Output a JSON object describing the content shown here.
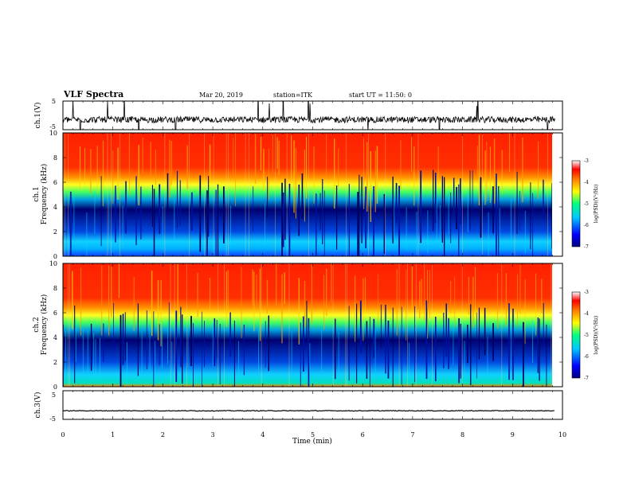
{
  "header": {
    "title": "VLF Spectra",
    "date": "Mar 20, 2019",
    "station": "station=ITK",
    "start": "start UT =  11:50: 0"
  },
  "chart_data": [
    {
      "type": "line",
      "panel": "ch1-waveform",
      "ylabel": "ch.1(V)",
      "ylim": [
        -5,
        5
      ],
      "yticks": [
        "5",
        "-5"
      ],
      "x_range_min": [
        0,
        9.85
      ],
      "baseline_v": -1.5,
      "color": "#000000"
    },
    {
      "type": "heatmap",
      "panel": "ch1-spectrogram",
      "ylabel_top": "ch.1",
      "ylabel": "Frequency (kHz)",
      "ylim": [
        0,
        10
      ],
      "yticks": [
        "0",
        "2",
        "4",
        "6",
        "8",
        "10"
      ],
      "colorbar": {
        "label": "log(PSD)(V²/Hz)",
        "ticks": [
          "-3",
          "-4",
          "-5",
          "-6",
          "-7"
        ],
        "range": [
          -7,
          -3
        ],
        "colormap": [
          "#000080",
          "#0000ff",
          "#00c8ff",
          "#00ff80",
          "#ffff00",
          "#ff8000",
          "#ff0000",
          "#ffffff"
        ]
      },
      "bands_khz": [
        {
          "from": 0,
          "to": 1.2,
          "log_psd": -5.6
        },
        {
          "from": 1.2,
          "to": 4.5,
          "log_psd": -6.5
        },
        {
          "from": 4.5,
          "to": 6.5,
          "log_psd": -5.0
        },
        {
          "from": 6.5,
          "to": 10,
          "log_psd": -3.6
        }
      ]
    },
    {
      "type": "heatmap",
      "panel": "ch2-spectrogram",
      "ylabel_top": "ch.2",
      "ylabel": "Frequency (kHz)",
      "ylim": [
        0,
        10
      ],
      "yticks": [
        "0",
        "2",
        "4",
        "6",
        "8",
        "10"
      ],
      "colorbar": {
        "label": "log(PSD)(V²/Hz)",
        "ticks": [
          "-3",
          "-4",
          "-5",
          "-6",
          "-7"
        ],
        "range": [
          -7,
          -3
        ]
      },
      "bands_khz": [
        {
          "from": 0,
          "to": 1.2,
          "log_psd": -5.6
        },
        {
          "from": 1.2,
          "to": 4.5,
          "log_psd": -6.4
        },
        {
          "from": 4.5,
          "to": 6.5,
          "log_psd": -5.0
        },
        {
          "from": 6.5,
          "to": 10,
          "log_psd": -3.5
        }
      ]
    },
    {
      "type": "line",
      "panel": "ch3-waveform",
      "ylabel": "ch.3(V)",
      "ylim": [
        -5,
        5
      ],
      "yticks": [
        "5",
        "-5"
      ],
      "x_range_min": [
        0,
        9.85
      ],
      "baseline_v": -2,
      "color": "#000000"
    }
  ],
  "xaxis": {
    "label": "Time (min)",
    "min": 0,
    "max": 10,
    "ticks": [
      "0",
      "1",
      "2",
      "3",
      "4",
      "5",
      "6",
      "7",
      "8",
      "9",
      "10"
    ]
  }
}
